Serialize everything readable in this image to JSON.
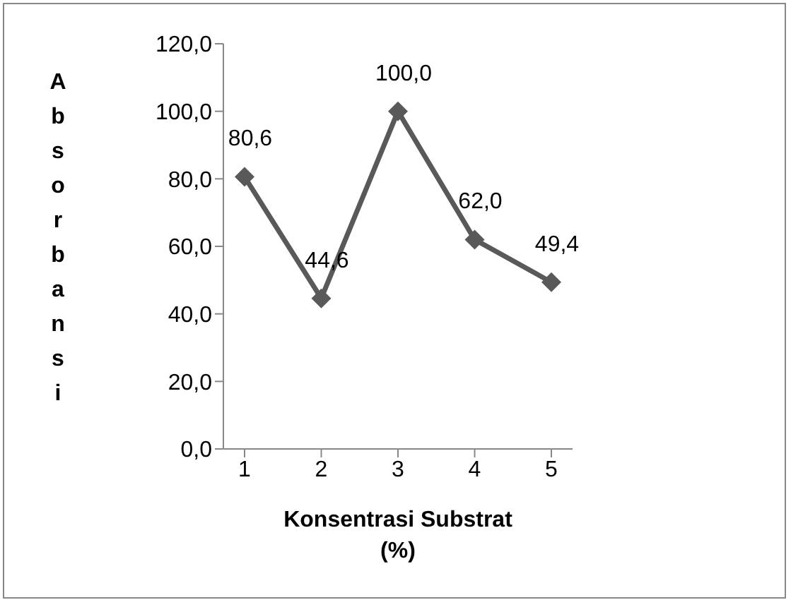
{
  "chart_data": {
    "type": "line",
    "categories": [
      "1",
      "2",
      "3",
      "4",
      "5"
    ],
    "series": [
      {
        "color": "#595959",
        "values": [
          80.6,
          44.6,
          100.0,
          62.0,
          49.4
        ],
        "value_labels": [
          "80,6",
          "44,6",
          "100,0",
          "62,0",
          "49,4"
        ]
      }
    ],
    "ylim": [
      0,
      120
    ],
    "yticks": [
      {
        "value": 0,
        "label": "0,0"
      },
      {
        "value": 20,
        "label": "20,0"
      },
      {
        "value": 40,
        "label": "40,0"
      },
      {
        "value": 60,
        "label": "60,0"
      },
      {
        "value": 80,
        "label": "80,0"
      },
      {
        "value": 100,
        "label": "100,0"
      },
      {
        "value": 120,
        "label": "120,0"
      }
    ],
    "xlabel": "Konsentrasi Substrat (%)",
    "ylabel": "Absorbansi",
    "grid": false,
    "legend": false,
    "marker": "diamond",
    "line_style": "solid"
  }
}
